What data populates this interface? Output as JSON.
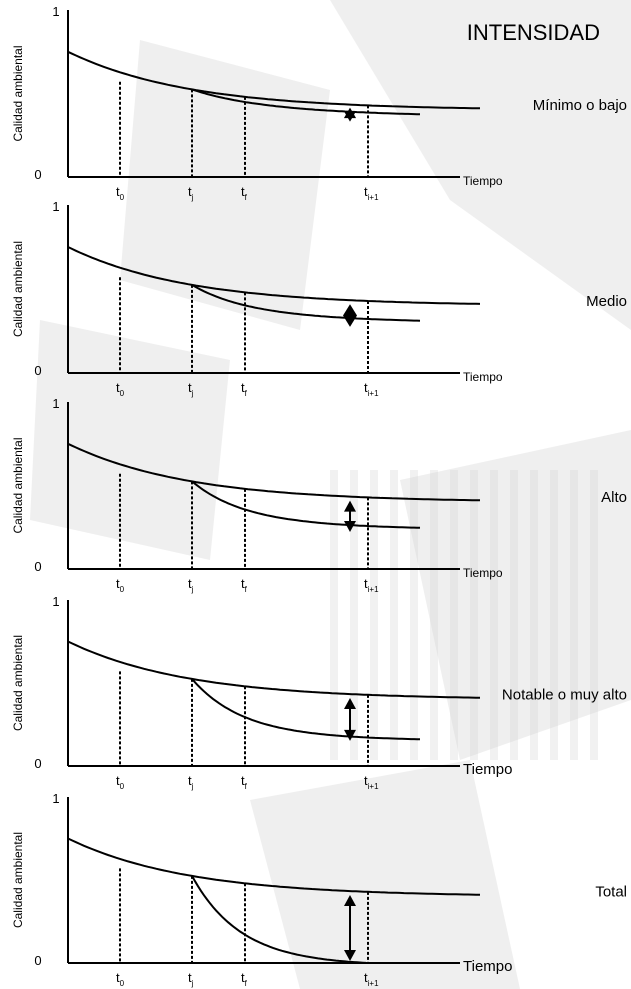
{
  "title": "INTENSIDAD",
  "y_axis_label": "Calidad ambiental",
  "y_tick_top": "1",
  "y_tick_bottom": "0",
  "x_axis_label": "Tiempo",
  "time_marks": [
    {
      "base": "t",
      "sub": "0"
    },
    {
      "base": "t",
      "sub": "j"
    },
    {
      "base": "t",
      "sub": "f"
    },
    {
      "base": "t",
      "sub": "i+1"
    }
  ],
  "panels": [
    {
      "level": "Mínimo o bajo",
      "indicator": "star",
      "impact_drop": 0.1
    },
    {
      "level": "Medio",
      "indicator": "double-arrow-head",
      "impact_drop": 0.25
    },
    {
      "level": "Alto",
      "indicator": "double-arrow",
      "impact_drop": 0.4
    },
    {
      "level": "Notable o muy alto",
      "indicator": "double-arrow",
      "impact_drop": 0.6
    },
    {
      "level": "Total",
      "indicator": "double-arrow",
      "impact_drop": 1.0
    }
  ],
  "colors": {
    "line": "#000000",
    "background": "#ffffff",
    "texture": "#d2d2d2"
  }
}
